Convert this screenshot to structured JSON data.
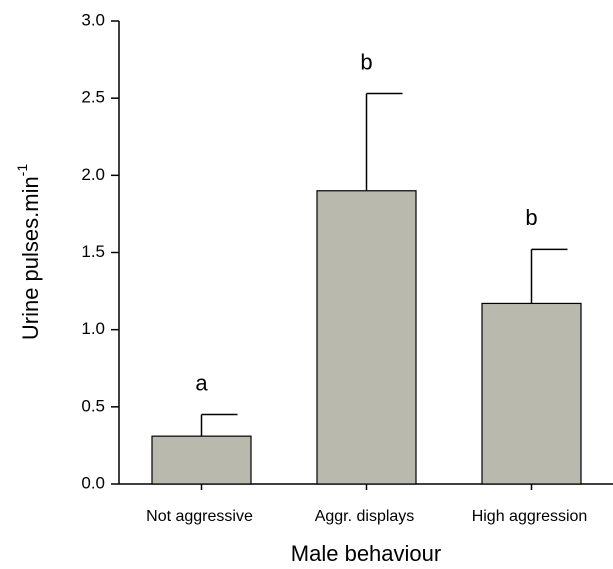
{
  "chart_data": {
    "type": "bar",
    "x_label": "Male behaviour",
    "y_label": "Urine pulses.min",
    "y_label_superscript": "-1",
    "categories": [
      "Not aggressive",
      "Aggr. displays",
      "High aggression"
    ],
    "values": [
      0.31,
      1.9,
      1.17
    ],
    "errors": [
      0.14,
      0.63,
      0.35
    ],
    "annotations": [
      "a",
      "b",
      "b"
    ],
    "color": "#b9b9ae",
    "ylim": [
      0,
      3
    ],
    "yticks": [
      {
        "value": 0,
        "label": "0.0"
      },
      0.5,
      {
        "value": 1,
        "label": "1.0"
      },
      1.5,
      {
        "value": 2,
        "label": "2.0"
      },
      2.5,
      {
        "value": 3,
        "label": "3.0"
      }
    ]
  }
}
